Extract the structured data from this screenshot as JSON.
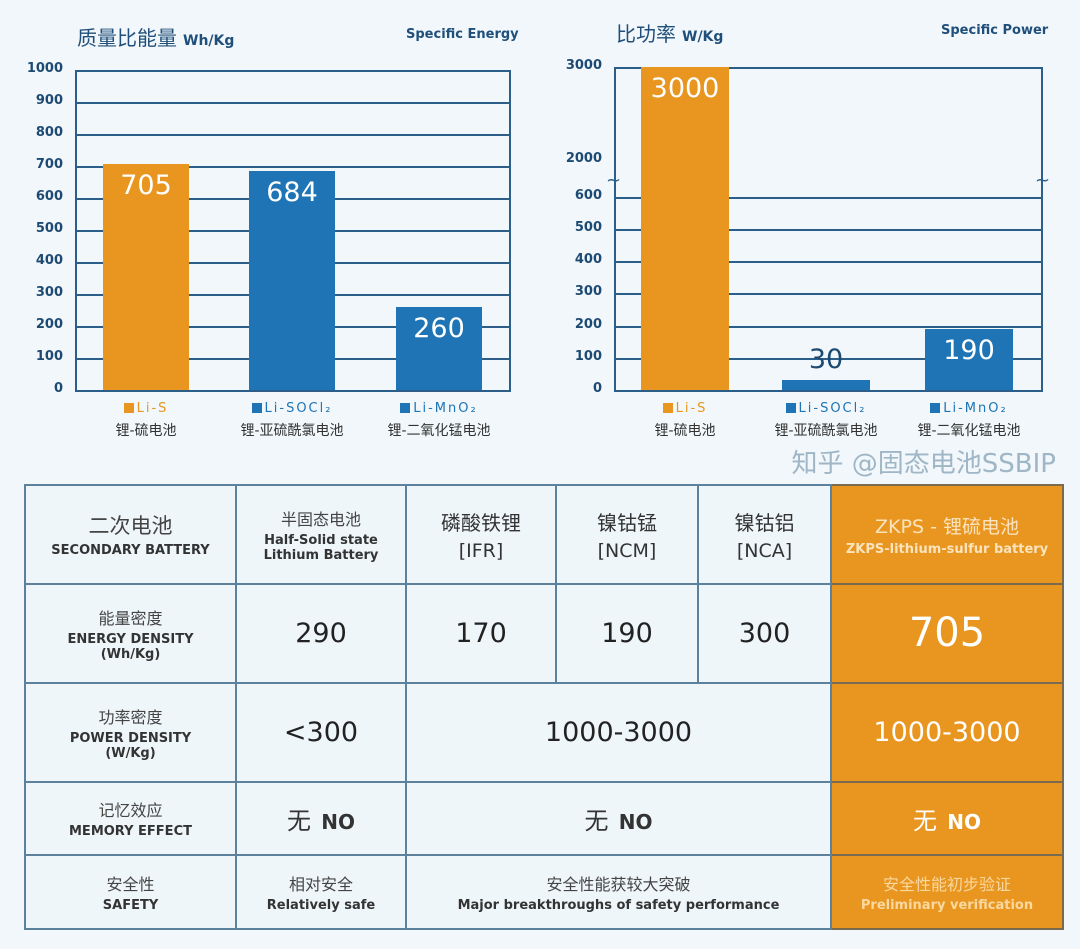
{
  "colors": {
    "li_s": "#e8961f",
    "other": "#1e74b4",
    "axis": "#2b5f8a"
  },
  "chart_data": [
    {
      "type": "bar",
      "title": "质量比能量",
      "unit": "Wh/Kg",
      "title_en": "Specific Energy",
      "ylim": [
        0,
        1000
      ],
      "yticks": [
        "1000",
        "900",
        "800",
        "700",
        "600",
        "500",
        "400",
        "300",
        "200",
        "100",
        "0"
      ],
      "categories": [
        {
          "code": "Li-S",
          "name": "锂-硫电池"
        },
        {
          "code": "Li-SOCl₂",
          "name": "锂-亚硫酰氯电池"
        },
        {
          "code": "Li-MnO₂",
          "name": "锂-二氧化锰电池"
        }
      ],
      "values": [
        705,
        684,
        260
      ],
      "labels": [
        "705",
        "684",
        "260"
      ],
      "grid": true
    },
    {
      "type": "bar",
      "title": "比功率",
      "unit": "W/Kg",
      "title_en": "Specific Power",
      "ylim": [
        0,
        3000
      ],
      "axis_break": [
        600,
        2000
      ],
      "yticks": [
        "3000",
        "2000",
        "600",
        "500",
        "400",
        "300",
        "200",
        "100",
        "0"
      ],
      "categories": [
        {
          "code": "Li-S",
          "name": "锂-硫电池"
        },
        {
          "code": "Li-SOCl₂",
          "name": "锂-亚硫酰氯电池"
        },
        {
          "code": "Li-MnO₂",
          "name": "锂-二氧化锰电池"
        }
      ],
      "values": [
        3000,
        30,
        190
      ],
      "labels": [
        "3000",
        "30",
        "190"
      ],
      "grid": true
    }
  ],
  "table": {
    "header": [
      {
        "cn": "二次电池",
        "en": "SECONDARY BATTERY"
      },
      {
        "cn": "半固态电池",
        "en": "Half-Solid state Lithium Battery"
      },
      {
        "cn": "磷酸铁锂",
        "en": "[IFR]"
      },
      {
        "cn": "镍钴锰",
        "en": "[NCM]"
      },
      {
        "cn": "镍钴铝",
        "en": "[NCA]"
      },
      {
        "cn": "ZKPS - 锂硫电池",
        "en": "ZKPS-lithium-sulfur battery"
      }
    ],
    "energy": {
      "cn": "能量密度",
      "en": "ENERGY DENSITY",
      "unit": "(Wh/Kg)",
      "values": [
        "290",
        "170",
        "190",
        "300",
        "705"
      ]
    },
    "power": {
      "cn": "功率密度",
      "en": "POWER DENSITY",
      "unit": "(W/Kg)",
      "values": [
        "<300",
        "1000-3000",
        "1000-3000"
      ]
    },
    "memory": {
      "cn": "记忆效应",
      "en": "MEMORY EFFECT",
      "values": [
        {
          "cn": "无",
          "en": "NO"
        },
        {
          "cn": "无",
          "en": "NO"
        },
        {
          "cn": "无",
          "en": "NO"
        }
      ]
    },
    "safety": {
      "cn": "安全性",
      "en": "SAFETY",
      "values": [
        {
          "cn": "相对安全",
          "en": "Relatively safe"
        },
        {
          "cn": "安全性能获较大突破",
          "en": "Major breakthroughs of safety performance"
        },
        {
          "cn": "安全性能初步验证",
          "en": "Preliminary verification"
        }
      ]
    }
  },
  "watermark": "知乎 @固态电池SSBIP"
}
